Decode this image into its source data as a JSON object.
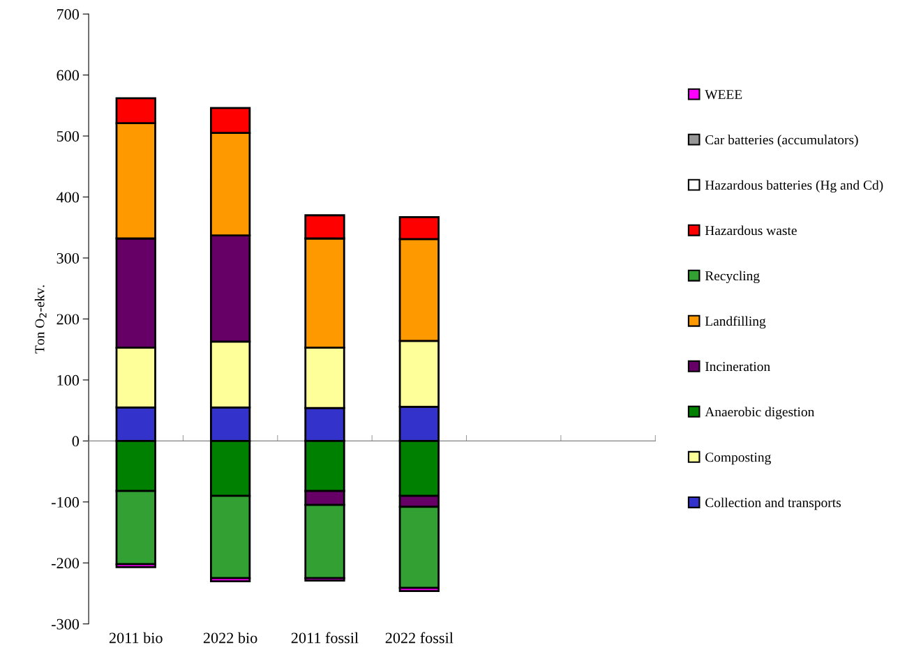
{
  "chart_data": {
    "type": "bar",
    "stacked": true,
    "ylabel": "Ton O$_{2}$-ekv.",
    "categories": [
      "2011 bio",
      "2022 bio",
      "2011 fossil",
      "2022 fossil",
      null,
      null
    ],
    "series": [
      {
        "name": "Collection and transports",
        "color": "#3333cc",
        "values": [
          55,
          55,
          54,
          56,
          null,
          null
        ]
      },
      {
        "name": "Composting",
        "color": "#ffff99",
        "values": [
          98,
          108,
          99,
          108,
          null,
          null
        ]
      },
      {
        "name": "Anaerobic digestion",
        "color": "#008000",
        "values": [
          -82,
          -90,
          -82,
          -90,
          null,
          null
        ]
      },
      {
        "name": "Incineration",
        "color": "#660066",
        "values": [
          179,
          174,
          -23,
          -18,
          null,
          null
        ]
      },
      {
        "name": "Landfilling",
        "color": "#ff9900",
        "values": [
          189,
          168,
          179,
          167,
          null,
          null
        ]
      },
      {
        "name": "Recycling",
        "color": "#33a033",
        "values": [
          -120,
          -135,
          -120,
          -133,
          null,
          null
        ]
      },
      {
        "name": "Hazardous waste",
        "color": "#ff0000",
        "values": [
          41,
          41,
          38,
          36,
          null,
          null
        ]
      },
      {
        "name": "Hazardous batteries (Hg and Cd)",
        "color": "#ffffff",
        "values": [
          null,
          null,
          null,
          null,
          null,
          null
        ]
      },
      {
        "name": "Car batteries (accumulators)",
        "color": "#969696",
        "values": [
          null,
          null,
          null,
          null,
          null,
          null
        ]
      },
      {
        "name": "WEEE",
        "color": "#ff00ff",
        "values": [
          -5,
          -5,
          -4,
          -5,
          null,
          null
        ]
      }
    ],
    "ylim": [
      -300,
      700
    ],
    "yticks": [
      -300,
      -200,
      -100,
      0,
      100,
      200,
      300,
      400,
      500,
      600,
      700
    ],
    "legend": "right"
  }
}
